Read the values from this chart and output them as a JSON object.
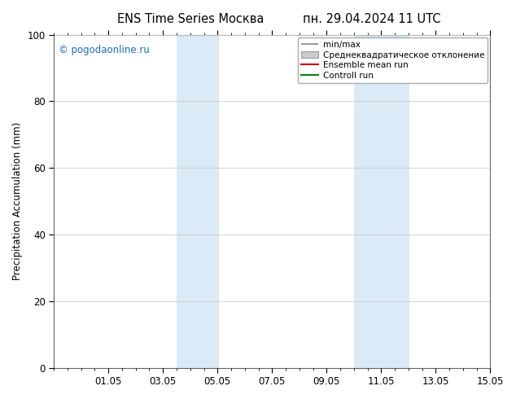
{
  "title_left": "ENS Time Series Москва",
  "title_right": "пн. 29.04.2024 11 UTC",
  "ylabel": "Precipitation Accumulation (mm)",
  "ylim": [
    0,
    100
  ],
  "yticks": [
    0,
    20,
    40,
    60,
    80,
    100
  ],
  "total_days": 16,
  "xtick_positions": [
    2,
    4,
    6,
    8,
    10,
    12,
    14,
    16
  ],
  "xtick_labels": [
    "01.05",
    "03.05",
    "05.05",
    "07.05",
    "09.05",
    "11.05",
    "13.05",
    "15.05"
  ],
  "shaded_bands": [
    {
      "x_start_day": 4.5,
      "x_end_day": 5.5,
      "color": "#daeaf7"
    },
    {
      "x_start_day": 5.5,
      "x_end_day": 6.0,
      "color": "#daeaf7"
    },
    {
      "x_start_day": 11.0,
      "x_end_day": 12.0,
      "color": "#daeaf7"
    },
    {
      "x_start_day": 12.0,
      "x_end_day": 13.0,
      "color": "#daeaf7"
    }
  ],
  "shaded_bands_merged": [
    {
      "x_start_day": 4.5,
      "x_end_day": 6.05,
      "color": "#daeaf7"
    },
    {
      "x_start_day": 11.0,
      "x_end_day": 13.05,
      "color": "#daeaf7"
    }
  ],
  "watermark": "© pogodaonline.ru",
  "watermark_color": "#1a6eb5",
  "legend_items": [
    {
      "label": "min/max",
      "color": "#888888",
      "type": "line_horz"
    },
    {
      "label": "Среднеквадратическое отклонение",
      "color": "#cccccc",
      "type": "rect"
    },
    {
      "label": "Ensemble mean run",
      "color": "#cc0000",
      "type": "line"
    },
    {
      "label": "Controll run",
      "color": "#008800",
      "type": "line"
    }
  ],
  "background_color": "#ffffff",
  "plot_bg_color": "#ffffff",
  "grid_color": "#cccccc"
}
